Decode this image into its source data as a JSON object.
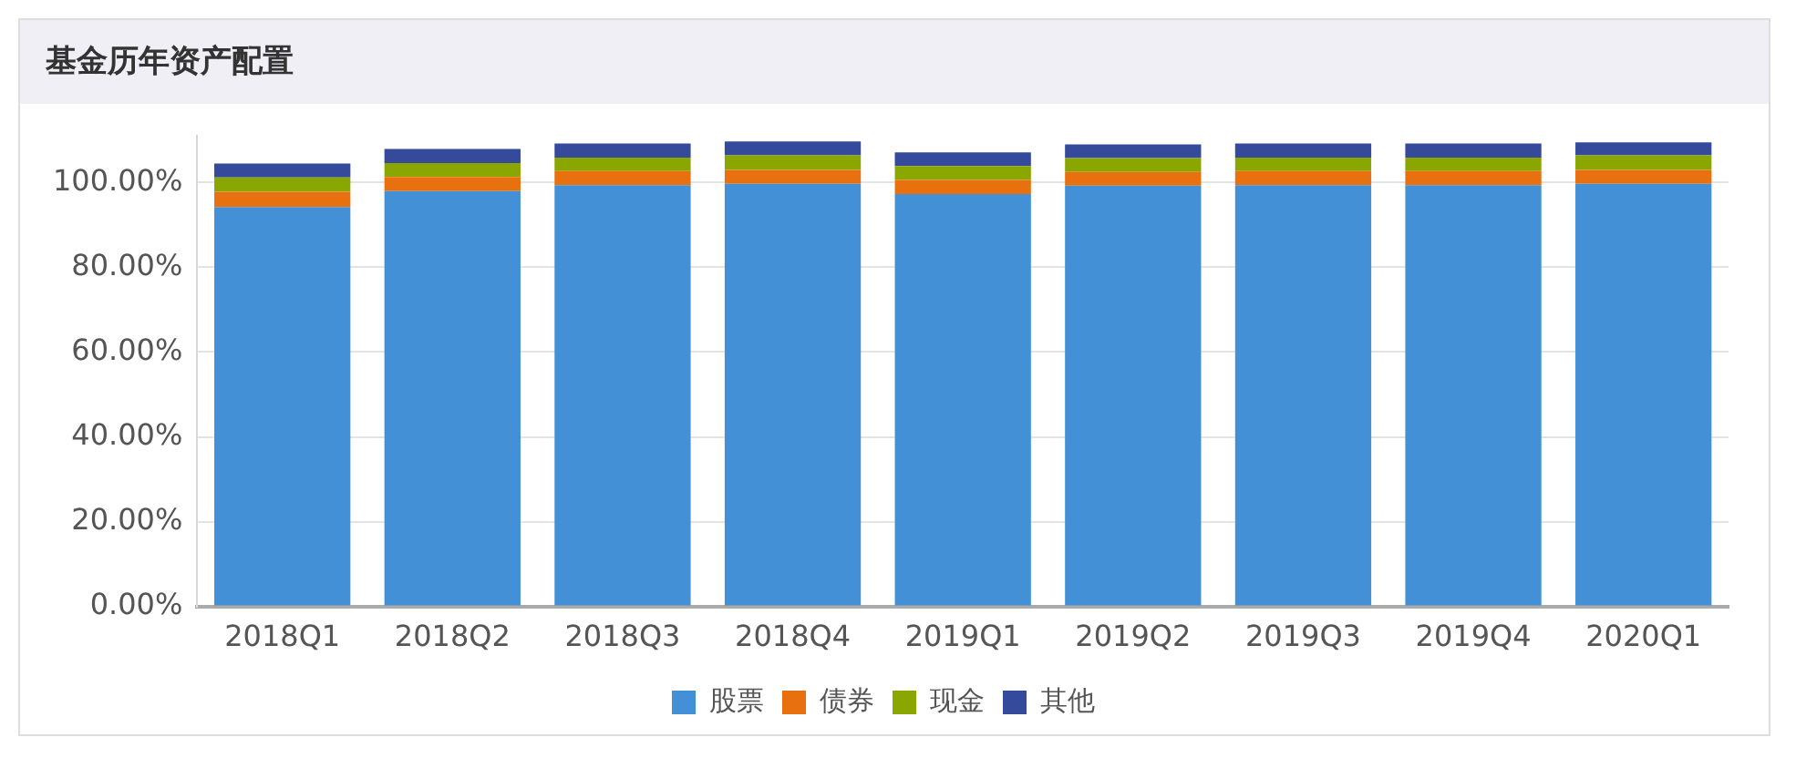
{
  "chart_data": {
    "type": "bar",
    "title": "基金历年资产配置",
    "stacked": true,
    "categories": [
      "2018Q1",
      "2018Q2",
      "2018Q3",
      "2018Q4",
      "2019Q1",
      "2019Q2",
      "2019Q3",
      "2019Q4",
      "2020Q1"
    ],
    "series": [
      {
        "name": "股票",
        "color": "#4390d6",
        "values": [
          94.2,
          98.0,
          99.4,
          99.7,
          97.3,
          99.3,
          99.4,
          99.4,
          99.7
        ]
      },
      {
        "name": "债券",
        "color": "#e8700e",
        "values": [
          3.6,
          3.3,
          3.3,
          3.3,
          3.3,
          3.2,
          3.3,
          3.3,
          3.3
        ]
      },
      {
        "name": "现金",
        "color": "#8aa600",
        "values": [
          3.4,
          3.3,
          3.2,
          3.4,
          3.3,
          3.3,
          3.2,
          3.2,
          3.4
        ]
      },
      {
        "name": "其他",
        "color": "#354a9a",
        "values": [
          3.3,
          3.3,
          3.3,
          3.3,
          3.2,
          3.2,
          3.3,
          3.3,
          3.1
        ]
      }
    ],
    "ylim": [
      0,
      111
    ],
    "yticks": [
      {
        "value": 0,
        "label": "0.00%"
      },
      {
        "value": 20,
        "label": "20.00%"
      },
      {
        "value": 40,
        "label": "40.00%"
      },
      {
        "value": 60,
        "label": "60.00%"
      },
      {
        "value": 80,
        "label": "80.00%"
      },
      {
        "value": 100,
        "label": "100.00%"
      }
    ],
    "grid": "y",
    "legend": "bottom"
  }
}
